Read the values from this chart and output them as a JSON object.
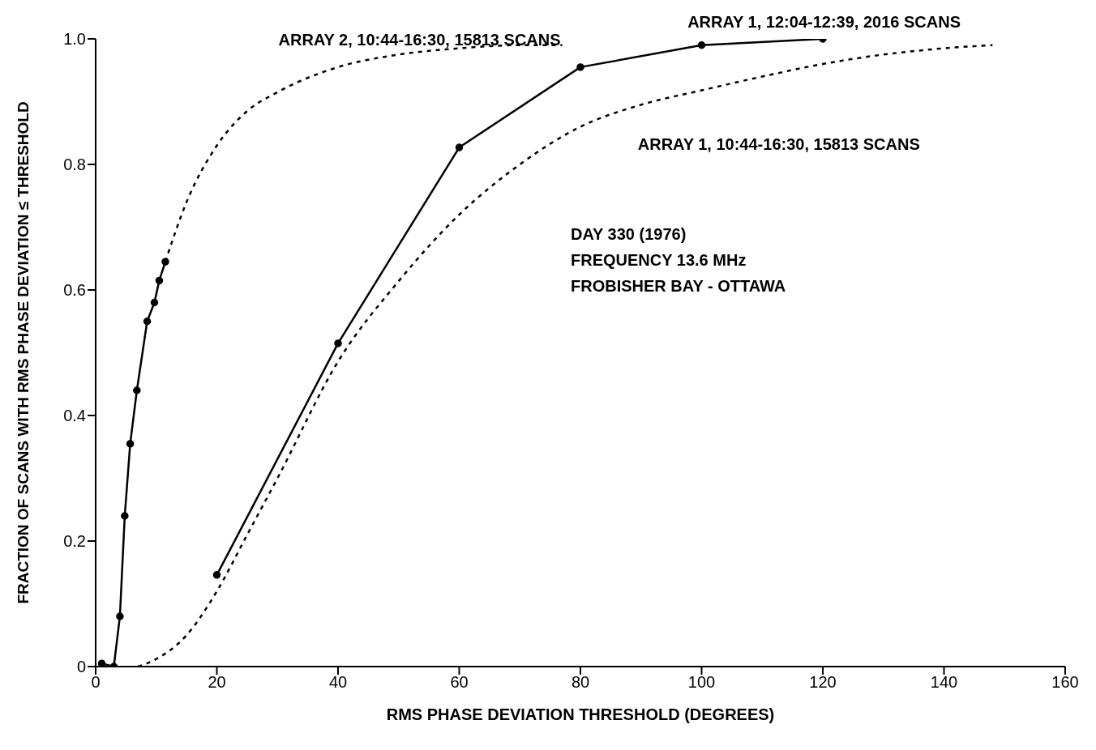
{
  "chart_data": {
    "type": "line",
    "xlabel": "RMS PHASE DEVIATION THRESHOLD (DEGREES)",
    "ylabel": "FRACTION OF SCANS WITH RMS PHASE DEVIATION ≤ THRESHOLD",
    "xlim": [
      0,
      160
    ],
    "xticks": [
      0,
      20,
      40,
      60,
      80,
      100,
      120,
      140,
      160
    ],
    "ylim": [
      0,
      1
    ],
    "yticks": [
      0,
      0.2,
      0.4,
      0.6,
      0.8,
      {
        "value": 1,
        "label": "1.0"
      }
    ],
    "series": [
      {
        "color": "#000000",
        "line_style": "solid",
        "marker": "circle",
        "x": [
          1,
          3,
          4,
          4.8,
          5.7,
          6.8,
          8.5,
          9.7,
          10.5,
          11.5
        ],
        "values": [
          0.005,
          0,
          0.08,
          0.24,
          0.355,
          0.44,
          0.55,
          0.58,
          0.615,
          0.645
        ]
      },
      {
        "name": "ARRAY 2, 10:44-16:30, 15813 SCANS",
        "color": "#000000",
        "line_style": "dashed",
        "marker": "none",
        "x": [
          11.5,
          15,
          20,
          25,
          30,
          40,
          50,
          60,
          70,
          77
        ],
        "values": [
          0.645,
          0.74,
          0.83,
          0.885,
          0.915,
          0.955,
          0.975,
          0.985,
          0.99,
          0.99
        ]
      },
      {
        "name": "ARRAY 1, 12:04-12:39, 2016 SCANS",
        "color": "#000000",
        "line_style": "solid",
        "marker": "circle",
        "x": [
          20,
          40,
          60,
          80,
          100,
          120
        ],
        "values": [
          0.146,
          0.515,
          0.827,
          0.955,
          0.99,
          1.0
        ]
      },
      {
        "name": "ARRAY 1, 10:44-16:30, 15813 SCANS",
        "color": "#000000",
        "line_style": "dashed",
        "marker": "none",
        "x": [
          7,
          10,
          15,
          20,
          25,
          30,
          40,
          50,
          60,
          70,
          80,
          90,
          100,
          110,
          120,
          130,
          140,
          148
        ],
        "values": [
          0,
          0.012,
          0.05,
          0.12,
          0.21,
          0.3,
          0.486,
          0.614,
          0.72,
          0.8,
          0.86,
          0.895,
          0.918,
          0.94,
          0.96,
          0.975,
          0.985,
          0.99
        ]
      }
    ],
    "annotations": [
      "DAY 330 (1976)",
      "FREQUENCY 13.6 MHz",
      "FROBISHER BAY - OTTAWA"
    ]
  }
}
